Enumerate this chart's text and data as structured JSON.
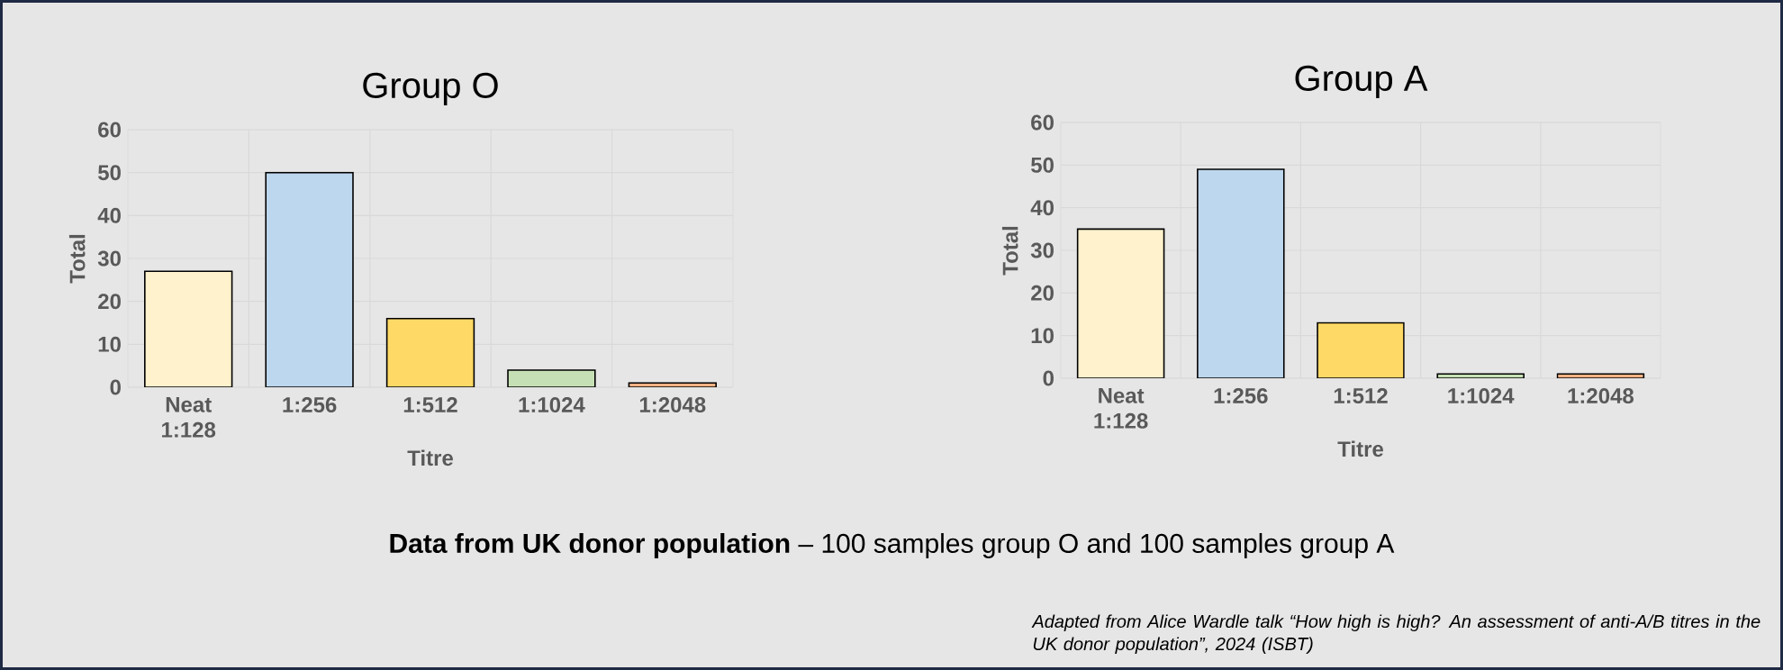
{
  "chart_data": [
    {
      "type": "bar",
      "title": "Group O",
      "xlabel": "Titre",
      "ylabel": "Total",
      "categories": [
        "Neat 1:128",
        "1:256",
        "1:512",
        "1:1024",
        "1:2048"
      ],
      "values": [
        27,
        50,
        16,
        4,
        1
      ],
      "colors": [
        "#fff2cc",
        "#bdd7ee",
        "#ffd966",
        "#c5e0b4",
        "#f4b183"
      ],
      "ylim": [
        0,
        60
      ],
      "yticks": [
        0,
        10,
        20,
        30,
        40,
        50,
        60
      ],
      "grid": true
    },
    {
      "type": "bar",
      "title": "Group A",
      "xlabel": "Titre",
      "ylabel": "Total",
      "categories": [
        "Neat 1:128",
        "1:256",
        "1:512",
        "1:1024",
        "1:2048"
      ],
      "values": [
        35,
        49,
        13,
        1,
        1
      ],
      "colors": [
        "#fff2cc",
        "#bdd7ee",
        "#ffd966",
        "#c5e0b4",
        "#f4b183"
      ],
      "ylim": [
        0,
        60
      ],
      "yticks": [
        0,
        10,
        20,
        30,
        40,
        50,
        60
      ],
      "grid": true
    },
    {
      "type": "other",
      "annotations": [
        "**Data from UK donor population** – 100 samples group O and 100 samples group A",
        "Adapted from Alice Wardle talk “How high is high? An assessment of anti-A/B titres in the UK donor population”, 2024 (ISBT)"
      ]
    }
  ]
}
